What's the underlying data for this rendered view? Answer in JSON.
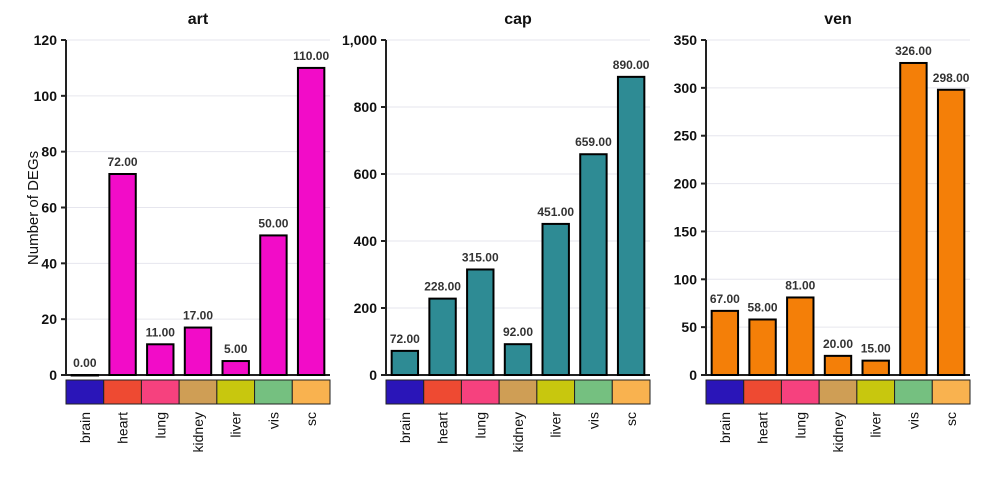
{
  "chart_data": [
    {
      "type": "bar",
      "title": "art",
      "ylabel": "Number of DEGs",
      "categories": [
        "brain",
        "heart",
        "lung",
        "kidney",
        "liver",
        "vis",
        "sc"
      ],
      "values": [
        0,
        72,
        11,
        17,
        5,
        50,
        110
      ],
      "value_labels": [
        "0.00",
        "72.00",
        "11.00",
        "17.00",
        "5.00",
        "50.00",
        "110.00"
      ],
      "ylim": [
        0,
        120
      ],
      "yticks": [
        0,
        20,
        40,
        60,
        80,
        100,
        120
      ],
      "ytick_labels": [
        "0",
        "20",
        "40",
        "60",
        "80",
        "100",
        "120"
      ],
      "bar_color": "#f20cc8"
    },
    {
      "type": "bar",
      "title": "cap",
      "ylabel": "",
      "categories": [
        "brain",
        "heart",
        "lung",
        "kidney",
        "liver",
        "vis",
        "sc"
      ],
      "values": [
        72,
        228,
        315,
        92,
        451,
        659,
        890
      ],
      "value_labels": [
        "72.00",
        "228.00",
        "315.00",
        "92.00",
        "451.00",
        "659.00",
        "890.00"
      ],
      "ylim": [
        0,
        1000
      ],
      "yticks": [
        0,
        200,
        400,
        600,
        800,
        1000
      ],
      "ytick_labels": [
        "0",
        "200",
        "400",
        "600",
        "800",
        "1,000"
      ],
      "bar_color": "#2e8b94"
    },
    {
      "type": "bar",
      "title": "ven",
      "ylabel": "",
      "categories": [
        "brain",
        "heart",
        "lung",
        "kidney",
        "liver",
        "vis",
        "sc"
      ],
      "values": [
        67,
        58,
        81,
        20,
        15,
        326,
        298
      ],
      "value_labels": [
        "67.00",
        "58.00",
        "81.00",
        "20.00",
        "15.00",
        "326.00",
        "298.00"
      ],
      "ylim": [
        0,
        350
      ],
      "yticks": [
        0,
        50,
        100,
        150,
        200,
        250,
        300,
        350
      ],
      "ytick_labels": [
        "0",
        "50",
        "100",
        "150",
        "200",
        "250",
        "300",
        "350"
      ],
      "bar_color": "#f47f08"
    }
  ],
  "category_colors": [
    "#2a15b8",
    "#ee4a32",
    "#f6417e",
    "#cf9e55",
    "#c8c70e",
    "#75c080",
    "#f9b24f"
  ],
  "grid": "horizontal"
}
